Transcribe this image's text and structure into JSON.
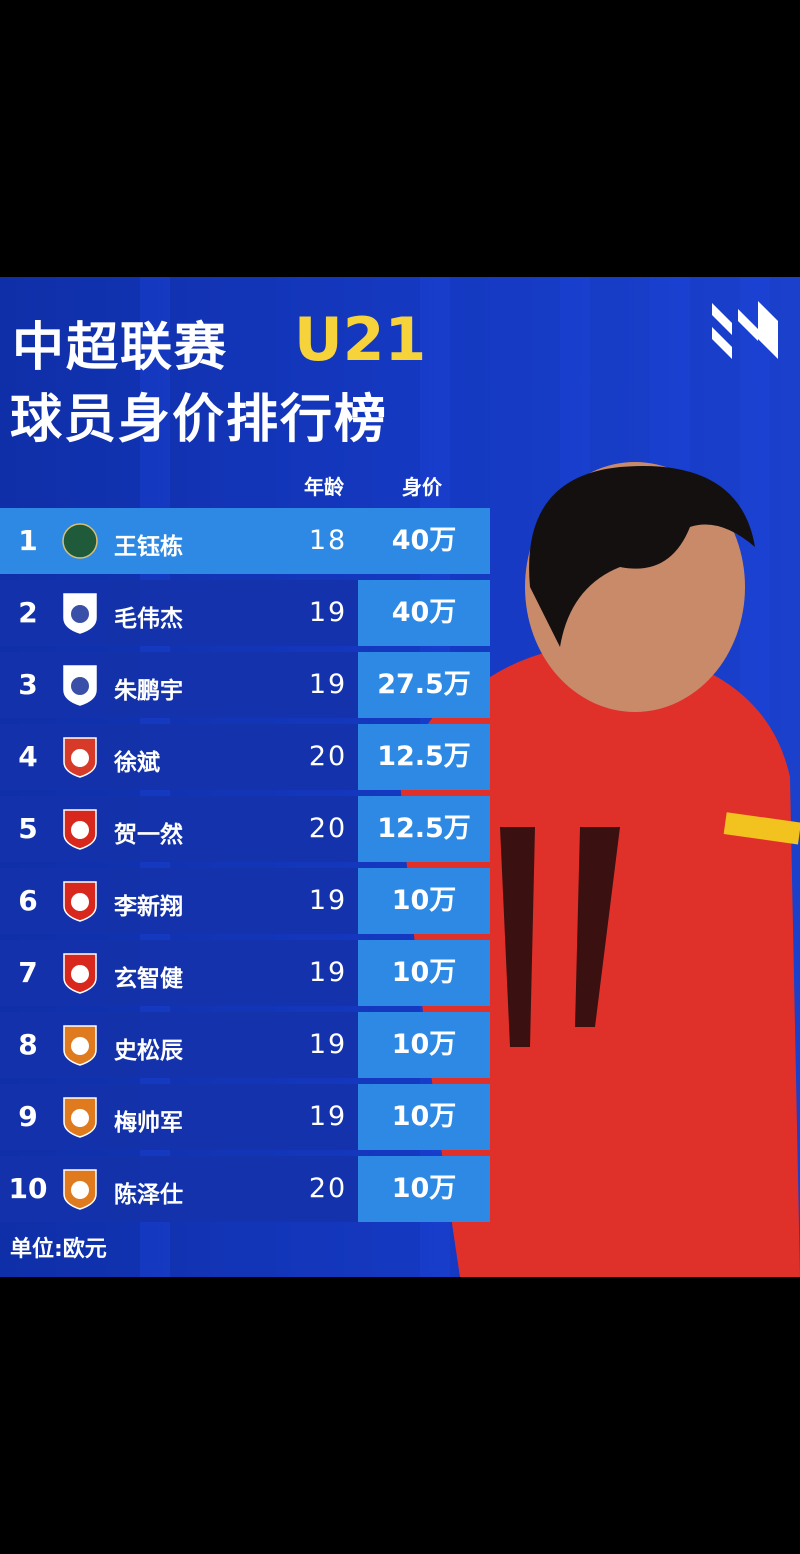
{
  "title": {
    "line1": "中超联赛",
    "badge": "U21",
    "line2": "球员身价排行榜"
  },
  "columns": {
    "age": "年龄",
    "value": "身价"
  },
  "rows": [
    {
      "rank": "1",
      "name": "王钰栋",
      "age": "18",
      "value": "40万",
      "club_color": "#1f5a3a"
    },
    {
      "rank": "2",
      "name": "毛伟杰",
      "age": "19",
      "value": "40万",
      "club_color": "#3a4fa8"
    },
    {
      "rank": "3",
      "name": "朱鹏宇",
      "age": "19",
      "value": "27.5万",
      "club_color": "#3a4fa8"
    },
    {
      "rank": "4",
      "name": "徐斌",
      "age": "20",
      "value": "12.5万",
      "club_color": "#d83a2a"
    },
    {
      "rank": "5",
      "name": "贺一然",
      "age": "20",
      "value": "12.5万",
      "club_color": "#d8281e"
    },
    {
      "rank": "6",
      "name": "李新翔",
      "age": "19",
      "value": "10万",
      "club_color": "#d8281e"
    },
    {
      "rank": "7",
      "name": "玄智健",
      "age": "19",
      "value": "10万",
      "club_color": "#d8281e"
    },
    {
      "rank": "8",
      "name": "史松辰",
      "age": "19",
      "value": "10万",
      "club_color": "#e07a1e"
    },
    {
      "rank": "9",
      "name": "梅帅军",
      "age": "19",
      "value": "10万",
      "club_color": "#e07a1e"
    },
    {
      "rank": "10",
      "name": "陈泽仕",
      "age": "20",
      "value": "10万",
      "club_color": "#e07a1e"
    }
  ],
  "footer": {
    "unit": "单位:欧元"
  },
  "colors": {
    "accent": "#f6d33b",
    "cell": "#2e89e4",
    "background": "#1438c0"
  }
}
